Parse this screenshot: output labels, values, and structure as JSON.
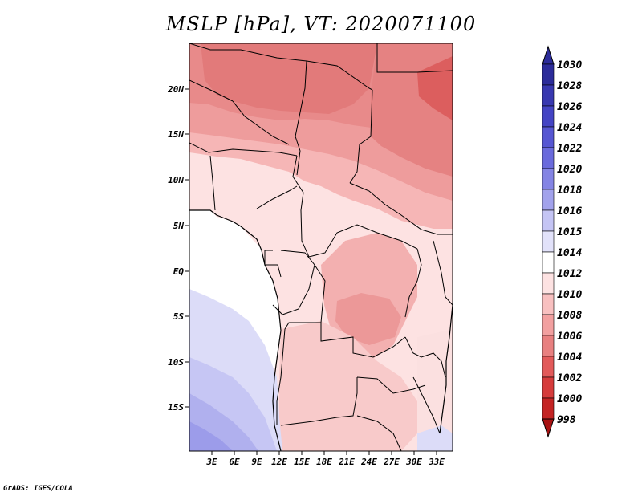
{
  "title": "MSLP [hPa], VT: 2020071100",
  "credit": "GrADS: IGES/COLA",
  "lat_labels": [
    "20N",
    "15N",
    "10N",
    "5N",
    "EQ",
    "5S",
    "10S",
    "15S"
  ],
  "lon_labels": [
    "3E",
    "6E",
    "9E",
    "12E",
    "15E",
    "18E",
    "21E",
    "24E",
    "27E",
    "30E",
    "33E"
  ],
  "colorbar": {
    "levels": [
      "1030",
      "1028",
      "1026",
      "1024",
      "1022",
      "1020",
      "1018",
      "1016",
      "1015",
      "1014",
      "1012",
      "1010",
      "1008",
      "1006",
      "1004",
      "1002",
      "1000",
      "998"
    ],
    "colors": [
      "#2c2c9a",
      "#3838b0",
      "#4444c4",
      "#5656d2",
      "#6a6adc",
      "#8484e4",
      "#a2a2ec",
      "#c4c4f4",
      "#e2e2fa",
      "#ffffff",
      "#fde2e2",
      "#f8c0c0",
      "#f2a0a0",
      "#e88080",
      "#e25a5a",
      "#d63c3c",
      "#c42424",
      "#a81212"
    ]
  },
  "colors": {
    "sea_low": "#a8a8ee",
    "sea_mid": "#d6d6f6",
    "land_pink_light": "#fde2e2",
    "land_pink": "#f8c0c0",
    "land_red": "#ee9c9c",
    "land_dark_red": "#e47a7a"
  }
}
